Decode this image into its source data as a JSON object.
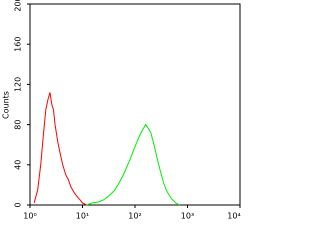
{
  "chart_data": {
    "type": "line",
    "y_label": "Counts",
    "xscale": "log",
    "xlim": [
      1,
      10000
    ],
    "xticks": [
      {
        "value": 1,
        "label": "10⁰"
      },
      {
        "value": 10,
        "label": "10¹"
      },
      {
        "value": 100,
        "label": "10²"
      },
      {
        "value": 1000,
        "label": "10³"
      },
      {
        "value": 10000,
        "label": "10⁴"
      }
    ],
    "ylim": [
      0,
      200
    ],
    "yticks": [
      0,
      40,
      80,
      120,
      160,
      200
    ],
    "series": [
      {
        "color": "#ff0000",
        "x": [
          1.2,
          1.4,
          1.6,
          1.8,
          2.0,
          2.2,
          2.4,
          2.6,
          2.8,
          3.0,
          3.4,
          3.8,
          4.2,
          4.8,
          5.4,
          6,
          7,
          8,
          9,
          10,
          12
        ],
        "values": [
          2,
          15,
          40,
          70,
          95,
          105,
          112,
          100,
          95,
          80,
          62,
          50,
          40,
          30,
          25,
          18,
          12,
          8,
          5,
          2,
          0
        ]
      },
      {
        "color": "#00ee00",
        "x": [
          12,
          15,
          20,
          25,
          30,
          40,
          50,
          60,
          70,
          80,
          90,
          100,
          120,
          140,
          160,
          180,
          200,
          230,
          260,
          300,
          350,
          400,
          500,
          600,
          700
        ],
        "values": [
          0,
          2,
          3,
          5,
          8,
          14,
          22,
          30,
          38,
          45,
          52,
          58,
          68,
          75,
          80,
          76,
          72,
          60,
          48,
          35,
          22,
          14,
          6,
          2,
          0
        ]
      }
    ]
  }
}
